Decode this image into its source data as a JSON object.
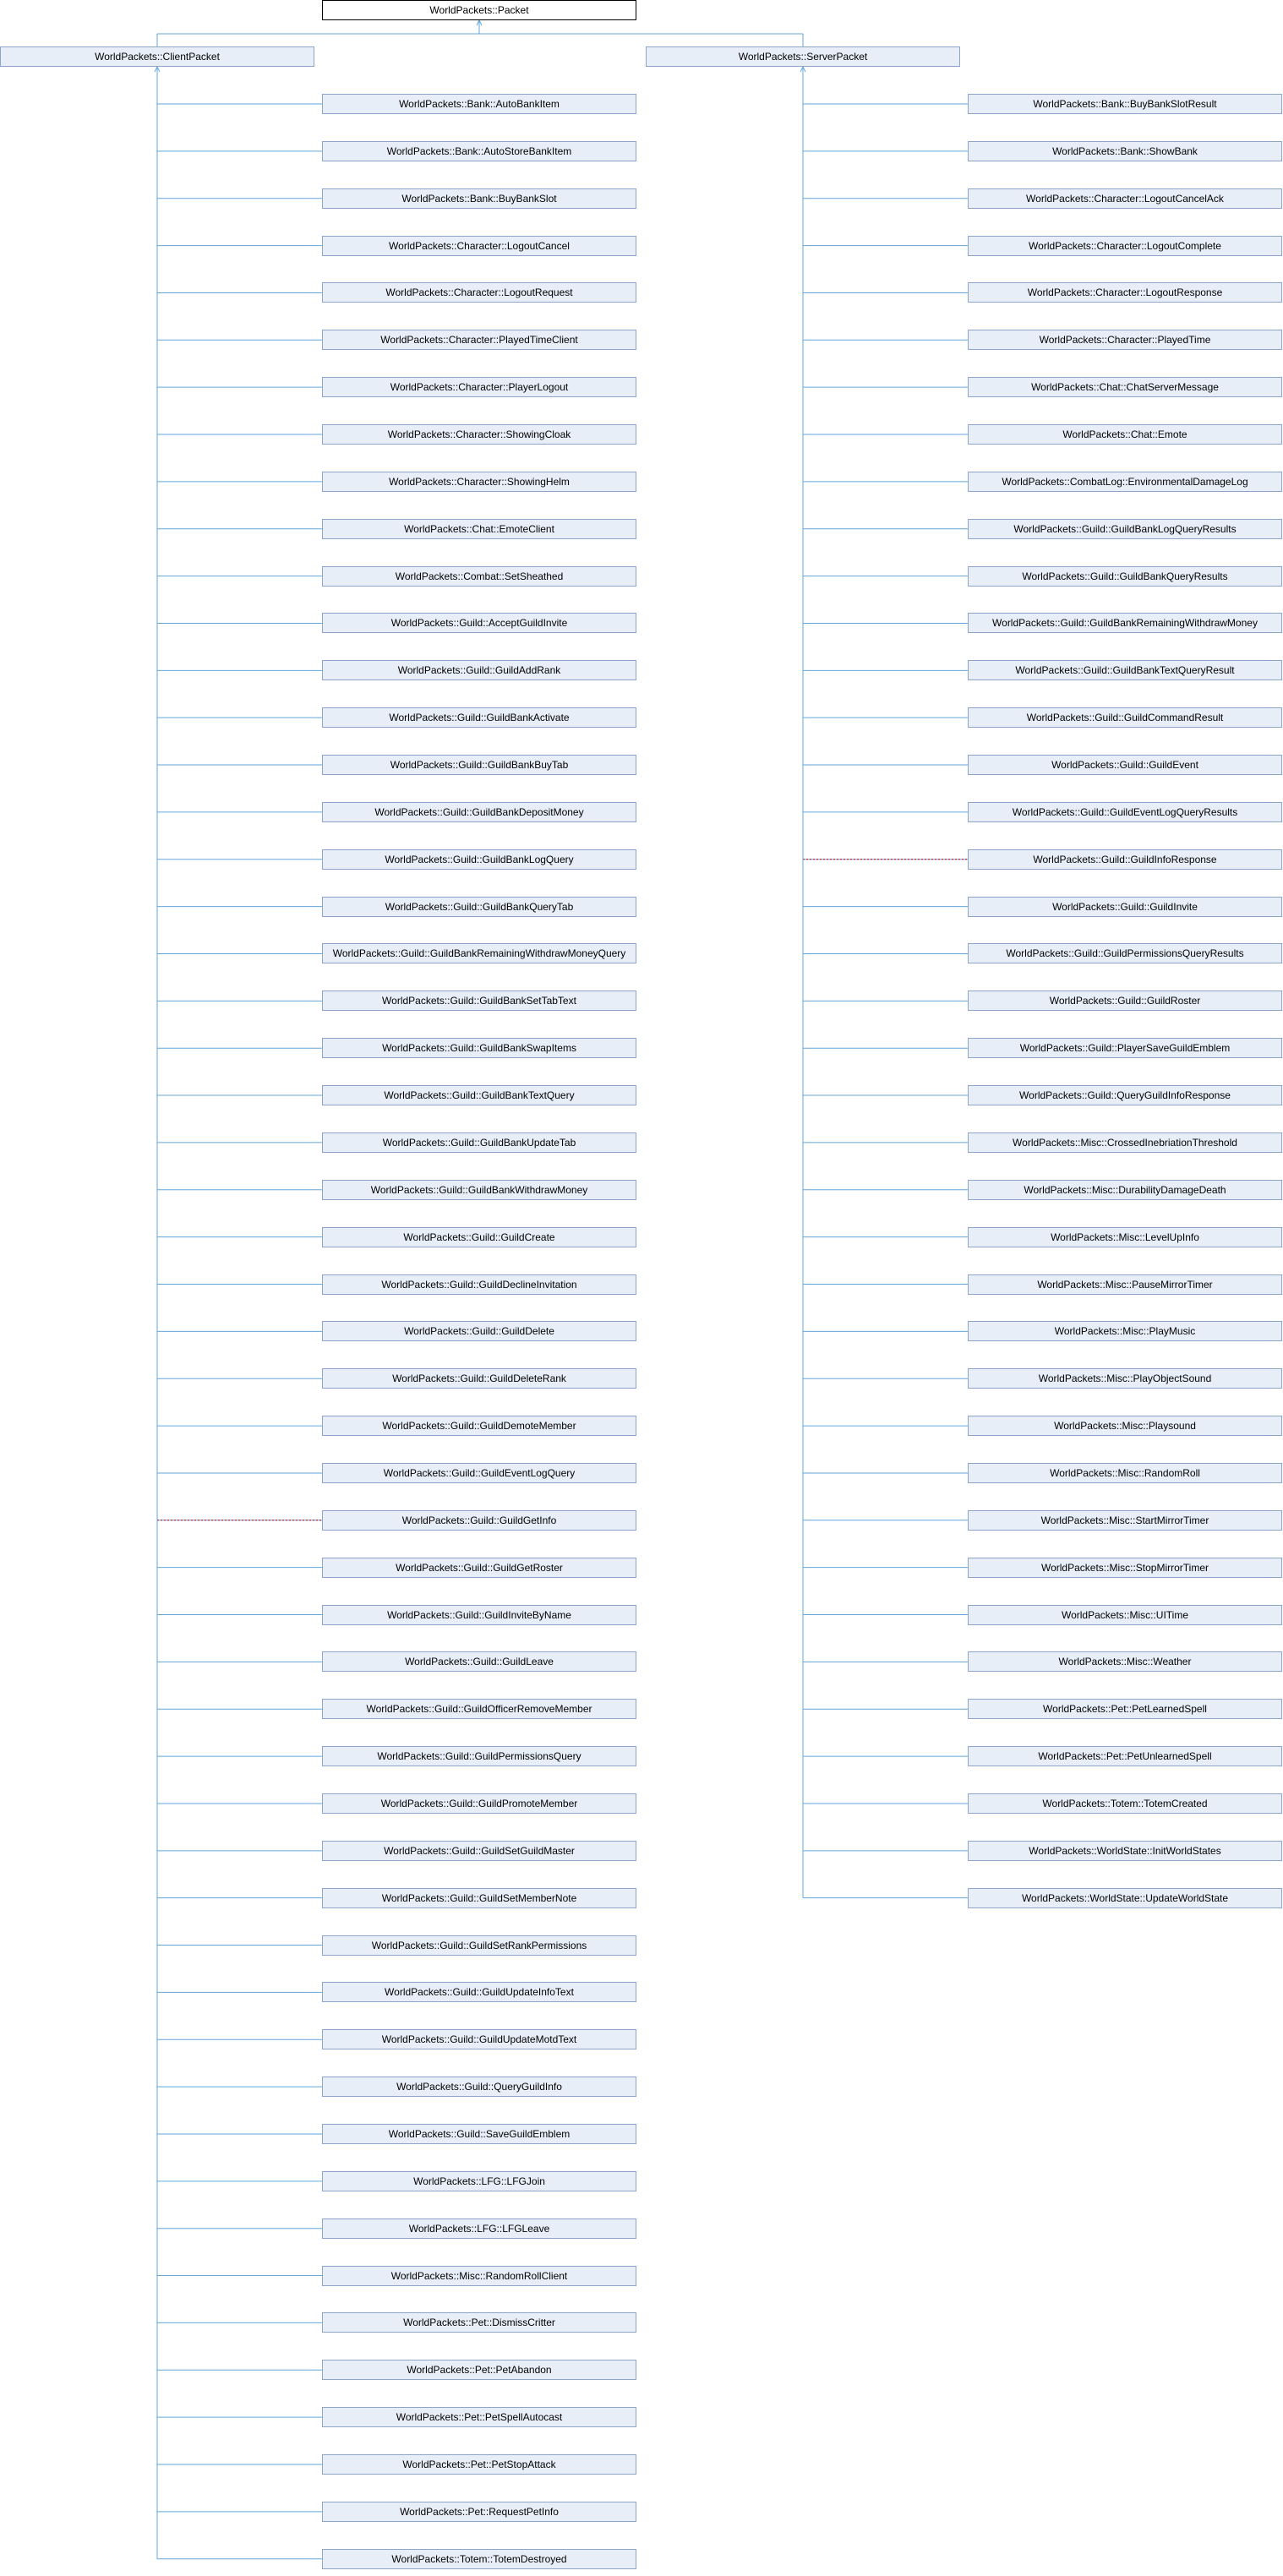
{
  "root": "WorldPackets::Packet",
  "groups": [
    {
      "base": "WorldPackets::ClientPacket",
      "dotted_link": "WorldPackets::Guild::GuildGetInfo",
      "children": [
        "WorldPackets::Bank::AutoBankItem",
        "WorldPackets::Bank::AutoStoreBankItem",
        "WorldPackets::Bank::BuyBankSlot",
        "WorldPackets::Character::LogoutCancel",
        "WorldPackets::Character::LogoutRequest",
        "WorldPackets::Character::PlayedTimeClient",
        "WorldPackets::Character::PlayerLogout",
        "WorldPackets::Character::ShowingCloak",
        "WorldPackets::Character::ShowingHelm",
        "WorldPackets::Chat::EmoteClient",
        "WorldPackets::Combat::SetSheathed",
        "WorldPackets::Guild::AcceptGuildInvite",
        "WorldPackets::Guild::GuildAddRank",
        "WorldPackets::Guild::GuildBankActivate",
        "WorldPackets::Guild::GuildBankBuyTab",
        "WorldPackets::Guild::GuildBankDepositMoney",
        "WorldPackets::Guild::GuildBankLogQuery",
        "WorldPackets::Guild::GuildBankQueryTab",
        "WorldPackets::Guild::GuildBankRemainingWithdrawMoneyQuery",
        "WorldPackets::Guild::GuildBankSetTabText",
        "WorldPackets::Guild::GuildBankSwapItems",
        "WorldPackets::Guild::GuildBankTextQuery",
        "WorldPackets::Guild::GuildBankUpdateTab",
        "WorldPackets::Guild::GuildBankWithdrawMoney",
        "WorldPackets::Guild::GuildCreate",
        "WorldPackets::Guild::GuildDeclineInvitation",
        "WorldPackets::Guild::GuildDelete",
        "WorldPackets::Guild::GuildDeleteRank",
        "WorldPackets::Guild::GuildDemoteMember",
        "WorldPackets::Guild::GuildEventLogQuery",
        "WorldPackets::Guild::GuildGetInfo",
        "WorldPackets::Guild::GuildGetRoster",
        "WorldPackets::Guild::GuildInviteByName",
        "WorldPackets::Guild::GuildLeave",
        "WorldPackets::Guild::GuildOfficerRemoveMember",
        "WorldPackets::Guild::GuildPermissionsQuery",
        "WorldPackets::Guild::GuildPromoteMember",
        "WorldPackets::Guild::GuildSetGuildMaster",
        "WorldPackets::Guild::GuildSetMemberNote",
        "WorldPackets::Guild::GuildSetRankPermissions",
        "WorldPackets::Guild::GuildUpdateInfoText",
        "WorldPackets::Guild::GuildUpdateMotdText",
        "WorldPackets::Guild::QueryGuildInfo",
        "WorldPackets::Guild::SaveGuildEmblem",
        "WorldPackets::LFG::LFGJoin",
        "WorldPackets::LFG::LFGLeave",
        "WorldPackets::Misc::RandomRollClient",
        "WorldPackets::Pet::DismissCritter",
        "WorldPackets::Pet::PetAbandon",
        "WorldPackets::Pet::PetSpellAutocast",
        "WorldPackets::Pet::PetStopAttack",
        "WorldPackets::Pet::RequestPetInfo",
        "WorldPackets::Totem::TotemDestroyed"
      ]
    },
    {
      "base": "WorldPackets::ServerPacket",
      "dotted_link": "WorldPackets::Guild::GuildInfoResponse",
      "children": [
        "WorldPackets::Bank::BuyBankSlotResult",
        "WorldPackets::Bank::ShowBank",
        "WorldPackets::Character::LogoutCancelAck",
        "WorldPackets::Character::LogoutComplete",
        "WorldPackets::Character::LogoutResponse",
        "WorldPackets::Character::PlayedTime",
        "WorldPackets::Chat::ChatServerMessage",
        "WorldPackets::Chat::Emote",
        "WorldPackets::CombatLog::EnvironmentalDamageLog",
        "WorldPackets::Guild::GuildBankLogQueryResults",
        "WorldPackets::Guild::GuildBankQueryResults",
        "WorldPackets::Guild::GuildBankRemainingWithdrawMoney",
        "WorldPackets::Guild::GuildBankTextQueryResult",
        "WorldPackets::Guild::GuildCommandResult",
        "WorldPackets::Guild::GuildEvent",
        "WorldPackets::Guild::GuildEventLogQueryResults",
        "WorldPackets::Guild::GuildInfoResponse",
        "WorldPackets::Guild::GuildInvite",
        "WorldPackets::Guild::GuildPermissionsQueryResults",
        "WorldPackets::Guild::GuildRoster",
        "WorldPackets::Guild::PlayerSaveGuildEmblem",
        "WorldPackets::Guild::QueryGuildInfoResponse",
        "WorldPackets::Misc::CrossedInebriationThreshold",
        "WorldPackets::Misc::DurabilityDamageDeath",
        "WorldPackets::Misc::LevelUpInfo",
        "WorldPackets::Misc::PauseMirrorTimer",
        "WorldPackets::Misc::PlayMusic",
        "WorldPackets::Misc::PlayObjectSound",
        "WorldPackets::Misc::Playsound",
        "WorldPackets::Misc::RandomRoll",
        "WorldPackets::Misc::StartMirrorTimer",
        "WorldPackets::Misc::StopMirrorTimer",
        "WorldPackets::Misc::UITime",
        "WorldPackets::Misc::Weather",
        "WorldPackets::Pet::PetLearnedSpell",
        "WorldPackets::Pet::PetUnlearnedSpell",
        "WorldPackets::Totem::TotemCreated",
        "WorldPackets::WorldState::InitWorldStates",
        "WorldPackets::WorldState::UpdateWorldState"
      ]
    }
  ],
  "colors": {
    "node_fill": "#e8eef8",
    "node_border": "#8da5c8",
    "root_fill": "#ffffff",
    "root_border": "#000000",
    "edge": "#63a6dd",
    "dotted_edge": "#cc0000"
  }
}
